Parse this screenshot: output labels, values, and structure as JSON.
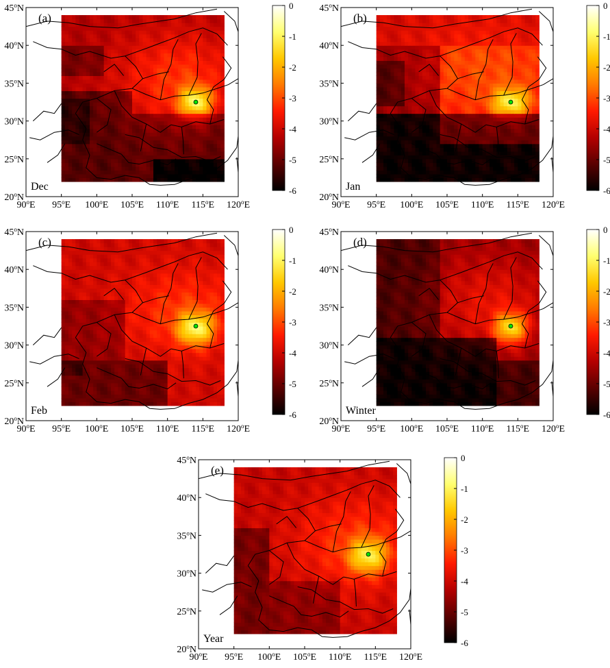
{
  "chart_data": [
    {
      "type": "heatmap",
      "panel_label": "(a)",
      "period": "Dec",
      "x_ticks": [
        90,
        95,
        100,
        105,
        110,
        115,
        120
      ],
      "y_ticks": [
        20,
        25,
        30,
        35,
        40,
        45
      ],
      "xlim": [
        90,
        120
      ],
      "ylim": [
        20,
        45
      ],
      "data_extent": {
        "lon": [
          95,
          118
        ],
        "lat": [
          22,
          44
        ]
      },
      "source_point": {
        "lon": 114,
        "lat": 32.5
      },
      "colorbar": {
        "ticks": [
          0,
          -1,
          -2,
          -3,
          -4,
          -5,
          -6
        ],
        "range": [
          -6,
          0
        ]
      },
      "hotspots": [
        {
          "lon": 114,
          "lat": 32.5,
          "sx": 1.6,
          "sy": 1.4,
          "amp": 2.7
        },
        {
          "lon": 111.5,
          "lat": 35.5,
          "sx": 6,
          "sy": 4.5,
          "amp": 1.1
        }
      ],
      "background": [
        {
          "lon0": 95,
          "lon1": 118,
          "lat0": 22,
          "lat1": 44,
          "value": -4.3
        },
        {
          "lon0": 95,
          "lon1": 105,
          "lat0": 22,
          "lat1": 34,
          "value": -5.2
        },
        {
          "lon0": 95,
          "lon1": 99,
          "lat0": 27,
          "lat1": 33,
          "value": -5.6
        },
        {
          "lon0": 104,
          "lon1": 118,
          "lat0": 22,
          "lat1": 31,
          "value": -5.1
        },
        {
          "lon0": 108,
          "lon1": 118,
          "lat0": 22,
          "lat1": 25,
          "value": -6
        },
        {
          "lon0": 95,
          "lon1": 101,
          "lat0": 36,
          "lat1": 40,
          "value": -4.9
        }
      ]
    },
    {
      "type": "heatmap",
      "panel_label": "(b)",
      "period": "Jan",
      "x_ticks": [
        90,
        95,
        100,
        105,
        110,
        115,
        120
      ],
      "y_ticks": [
        20,
        25,
        30,
        35,
        40,
        45
      ],
      "xlim": [
        90,
        120
      ],
      "ylim": [
        20,
        45
      ],
      "data_extent": {
        "lon": [
          95,
          118
        ],
        "lat": [
          22,
          44
        ]
      },
      "source_point": {
        "lon": 114,
        "lat": 32.5
      },
      "colorbar": {
        "ticks": [
          0,
          -1,
          -2,
          -3,
          -4,
          -5,
          -6
        ],
        "range": [
          -6,
          0
        ]
      },
      "hotspots": [
        {
          "lon": 114,
          "lat": 32.5,
          "sx": 1.8,
          "sy": 1.3,
          "amp": 2.3
        },
        {
          "lon": 110,
          "lat": 37,
          "sx": 8,
          "sy": 5,
          "amp": 0.6
        }
      ],
      "background": [
        {
          "lon0": 95,
          "lon1": 118,
          "lat0": 22,
          "lat1": 44,
          "value": -3.6
        },
        {
          "lon0": 95,
          "lon1": 104,
          "lat0": 31,
          "lat1": 40,
          "value": -4.6
        },
        {
          "lon0": 95,
          "lon1": 99,
          "lat0": 32,
          "lat1": 38,
          "value": -5.3
        },
        {
          "lon0": 95,
          "lon1": 118,
          "lat0": 22,
          "lat1": 31,
          "value": -5.9
        },
        {
          "lon0": 104,
          "lon1": 118,
          "lat0": 27,
          "lat1": 31,
          "value": -5.1
        },
        {
          "lon0": 95,
          "lon1": 118,
          "lat0": 40,
          "lat1": 44,
          "value": -4.0
        }
      ]
    },
    {
      "type": "heatmap",
      "panel_label": "(c)",
      "period": "Feb",
      "x_ticks": [
        90,
        95,
        100,
        105,
        110,
        115,
        120
      ],
      "y_ticks": [
        20,
        25,
        30,
        35,
        40,
        45
      ],
      "xlim": [
        90,
        120
      ],
      "ylim": [
        20,
        45
      ],
      "data_extent": {
        "lon": [
          95,
          118
        ],
        "lat": [
          22,
          44
        ]
      },
      "source_point": {
        "lon": 114,
        "lat": 32.5
      },
      "colorbar": {
        "ticks": [
          0,
          -1,
          -2,
          -3,
          -4,
          -5,
          -6
        ],
        "range": [
          -6,
          0
        ]
      },
      "hotspots": [
        {
          "lon": 114,
          "lat": 32.2,
          "sx": 1.8,
          "sy": 1.5,
          "amp": 2.6
        },
        {
          "lon": 112,
          "lat": 34.5,
          "sx": 6,
          "sy": 4,
          "amp": 0.8
        }
      ],
      "background": [
        {
          "lon0": 95,
          "lon1": 118,
          "lat0": 22,
          "lat1": 44,
          "value": -4.0
        },
        {
          "lon0": 95,
          "lon1": 110,
          "lat0": 22,
          "lat1": 28,
          "value": -5.0
        },
        {
          "lon0": 95,
          "lon1": 98,
          "lat0": 26,
          "lat1": 31,
          "value": -5.4
        },
        {
          "lon0": 95,
          "lon1": 104,
          "lat0": 28,
          "lat1": 36,
          "value": -4.6
        }
      ]
    },
    {
      "type": "heatmap",
      "panel_label": "(d)",
      "period": "Winter",
      "x_ticks": [
        90,
        95,
        100,
        105,
        110,
        115,
        120
      ],
      "y_ticks": [
        20,
        25,
        30,
        35,
        40,
        45
      ],
      "xlim": [
        90,
        120
      ],
      "ylim": [
        20,
        45
      ],
      "data_extent": {
        "lon": [
          95,
          118
        ],
        "lat": [
          22,
          44
        ]
      },
      "source_point": {
        "lon": 114,
        "lat": 32.5
      },
      "colorbar": {
        "ticks": [
          0,
          -1,
          -2,
          -3,
          -4,
          -5,
          -6
        ],
        "range": [
          -6,
          0
        ]
      },
      "hotspots": [
        {
          "lon": 114,
          "lat": 32.3,
          "sx": 1.6,
          "sy": 1.4,
          "amp": 2.7
        },
        {
          "lon": 111,
          "lat": 35.5,
          "sx": 6,
          "sy": 4.5,
          "amp": 0.9
        }
      ],
      "background": [
        {
          "lon0": 95,
          "lon1": 118,
          "lat0": 22,
          "lat1": 44,
          "value": -4.6
        },
        {
          "lon0": 95,
          "lon1": 104,
          "lat0": 31,
          "lat1": 44,
          "value": -5.3
        },
        {
          "lon0": 95,
          "lon1": 112,
          "lat0": 22,
          "lat1": 31,
          "value": -5.9
        },
        {
          "lon0": 112,
          "lon1": 118,
          "lat0": 22,
          "lat1": 28,
          "value": -5.4
        }
      ]
    },
    {
      "type": "heatmap",
      "panel_label": "(e)",
      "period": "Year",
      "x_ticks": [
        90,
        95,
        100,
        105,
        110,
        115,
        120
      ],
      "y_ticks": [
        20,
        25,
        30,
        35,
        40,
        45
      ],
      "xlim": [
        90,
        120
      ],
      "ylim": [
        20,
        45
      ],
      "data_extent": {
        "lon": [
          95,
          118
        ],
        "lat": [
          22,
          44
        ]
      },
      "source_point": {
        "lon": 114,
        "lat": 32.5
      },
      "colorbar": {
        "ticks": [
          0,
          -1,
          -2,
          -3,
          -4,
          -5,
          -6
        ],
        "range": [
          -6,
          0
        ]
      },
      "hotspots": [
        {
          "lon": 114,
          "lat": 32.3,
          "sx": 1.9,
          "sy": 1.6,
          "amp": 2.3
        },
        {
          "lon": 112,
          "lat": 34,
          "sx": 6,
          "sy": 4.5,
          "amp": 0.9
        }
      ],
      "background": [
        {
          "lon0": 95,
          "lon1": 118,
          "lat0": 22,
          "lat1": 44,
          "value": -4.1
        },
        {
          "lon0": 95,
          "lon1": 100,
          "lat0": 22,
          "lat1": 36,
          "value": -4.9
        },
        {
          "lon0": 100,
          "lon1": 110,
          "lat0": 22,
          "lat1": 29,
          "value": -4.7
        }
      ]
    }
  ],
  "colors": {
    "colormap": [
      "#000000",
      "#5a0000",
      "#b40000",
      "#ff1a00",
      "#ff7a00",
      "#ffc800",
      "#ffff70",
      "#ffffff"
    ],
    "source_marker": "#00e000",
    "border_lines": "#000000"
  }
}
